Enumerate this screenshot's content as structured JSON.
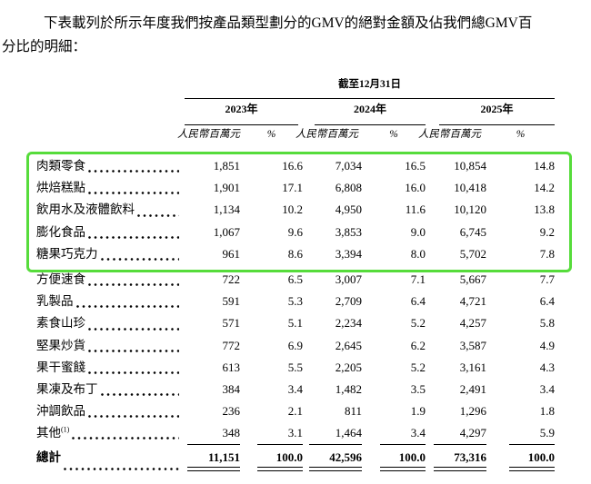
{
  "intro": {
    "line1": "下表載列於所示年度我們按產品類型劃分的GMV的絕對金額及佔我們總GMV百",
    "line2": "分比的明細："
  },
  "table": {
    "period_header": "截至12月31日",
    "years": [
      "2023年",
      "2024年",
      "2025年"
    ],
    "unit_label": "人民幣百萬元",
    "pct_label": "%",
    "rows": [
      {
        "label": "肉類零食",
        "highlighted": true,
        "v2023": "1,851",
        "p2023": "16.6",
        "v2024": "7,034",
        "p2024": "16.5",
        "v2025": "10,854",
        "p2025": "14.8"
      },
      {
        "label": "烘焙糕點",
        "highlighted": true,
        "v2023": "1,901",
        "p2023": "17.1",
        "v2024": "6,808",
        "p2024": "16.0",
        "v2025": "10,418",
        "p2025": "14.2"
      },
      {
        "label": "飲用水及液體飲料",
        "highlighted": true,
        "v2023": "1,134",
        "p2023": "10.2",
        "v2024": "4,950",
        "p2024": "11.6",
        "v2025": "10,120",
        "p2025": "13.8"
      },
      {
        "label": "膨化食品",
        "highlighted": true,
        "v2023": "1,067",
        "p2023": "9.6",
        "v2024": "3,853",
        "p2024": "9.0",
        "v2025": "6,745",
        "p2025": "9.2"
      },
      {
        "label": "糖果巧克力",
        "highlighted": true,
        "v2023": "961",
        "p2023": "8.6",
        "v2024": "3,394",
        "p2024": "8.0",
        "v2025": "5,702",
        "p2025": "7.8"
      },
      {
        "label": "方便速食",
        "highlighted": false,
        "v2023": "722",
        "p2023": "6.5",
        "v2024": "3,007",
        "p2024": "7.1",
        "v2025": "5,667",
        "p2025": "7.7"
      },
      {
        "label": "乳製品",
        "highlighted": false,
        "v2023": "591",
        "p2023": "5.3",
        "v2024": "2,709",
        "p2024": "6.4",
        "v2025": "4,721",
        "p2025": "6.4"
      },
      {
        "label": "素食山珍",
        "highlighted": false,
        "v2023": "571",
        "p2023": "5.1",
        "v2024": "2,234",
        "p2024": "5.2",
        "v2025": "4,257",
        "p2025": "5.8"
      },
      {
        "label": "堅果炒貨",
        "highlighted": false,
        "v2023": "772",
        "p2023": "6.9",
        "v2024": "2,645",
        "p2024": "6.2",
        "v2025": "3,587",
        "p2025": "4.9"
      },
      {
        "label": "果干蜜餞",
        "highlighted": false,
        "v2023": "613",
        "p2023": "5.5",
        "v2024": "2,205",
        "p2024": "5.2",
        "v2025": "3,161",
        "p2025": "4.3"
      },
      {
        "label": "果凍及布丁",
        "highlighted": false,
        "v2023": "384",
        "p2023": "3.4",
        "v2024": "1,482",
        "p2024": "3.5",
        "v2025": "2,491",
        "p2025": "3.4"
      },
      {
        "label": "沖調飲品",
        "highlighted": false,
        "v2023": "236",
        "p2023": "2.1",
        "v2024": "811",
        "p2024": "1.9",
        "v2025": "1,296",
        "p2025": "1.8"
      },
      {
        "label": "其他",
        "sup": "(1)",
        "sum_rule": true,
        "highlighted": false,
        "v2023": "348",
        "p2023": "3.1",
        "v2024": "1,464",
        "p2024": "3.4",
        "v2025": "4,297",
        "p2025": "5.9"
      }
    ],
    "total": {
      "label": "總計",
      "v2023": "11,151",
      "p2023": "100.0",
      "v2024": "42,596",
      "p2024": "100.0",
      "v2025": "73,316",
      "p2025": "100.0"
    }
  },
  "annotation": {
    "highlight_box_color": "#56dc3b"
  }
}
